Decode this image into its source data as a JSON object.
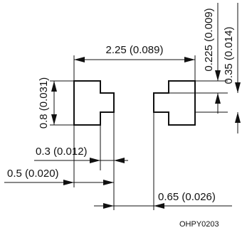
{
  "dimensions": {
    "pad_pitch": "2.25 (0.089)",
    "height_left": "0.8 (0.031)",
    "step_top": "0.225 (0.009)",
    "step_right": "0.35 (0.014)",
    "tab_width": "0.3 (0.012)",
    "pad_width": "0.5 (0.020)",
    "gap_width": "0.65 (0.026)"
  },
  "part_code": "OHPY0203",
  "colors": {
    "line": "#111111",
    "background": "#ffffff"
  }
}
